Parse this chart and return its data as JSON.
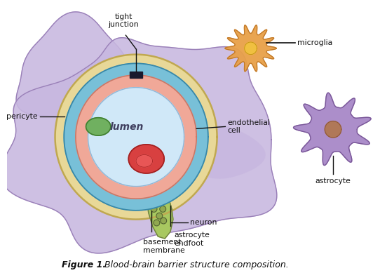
{
  "bg": "#ffffff",
  "title_bold": "Figure 1.",
  "title_italic": " Blood-brain barrier structure composition.",
  "labels": {
    "tight_junction": "tight\njunction",
    "pericyte": "pericyte",
    "lumen": "lumen",
    "endothelial_cell": "endothelial\ncell",
    "astrocyte_endfoot": "astrocyte\nendfoot",
    "basement_membrane": "basement\nmembrane",
    "neuron": "neuron",
    "microglia": "microglia",
    "astrocyte": "astrocyte"
  },
  "colors": {
    "astrocyte_wrap": "#c8b8e0",
    "astrocyte_wrap_edge": "#9a80b8",
    "astrocyte_cell": "#a888c8",
    "astrocyte_cell_edge": "#7a5898",
    "astrocyte_nucleus": "#b07858",
    "astrocyte_nucleus_edge": "#905838",
    "outer_tan": "#e8d898",
    "outer_tan_edge": "#c0a850",
    "blue_layer": "#78c0d8",
    "blue_layer_edge": "#3888a8",
    "pink_layer": "#f0a898",
    "pink_layer_edge": "#c87868",
    "lumen": "#d0e8f8",
    "lumen_edge": "#90b8d8",
    "green_nucleus": "#70b060",
    "green_nucleus_edge": "#408030",
    "red_nucleus": "#d84040",
    "red_nucleus_edge": "#a02020",
    "red_highlight": "#f06060",
    "tj_rect": "#1a1a2e",
    "neuron_stem": "#a8c860",
    "neuron_stem_edge": "#708040",
    "neuron_dot": "#90a850",
    "neuron_dot_edge": "#506030",
    "microglia_fill": "#e8a048",
    "microglia_edge": "#c07828",
    "microglia_nucleus": "#f0c040",
    "microglia_nucleus_edge": "#c09010",
    "ann_line": "#101010",
    "text": "#101010",
    "lumen_text": "#404060",
    "white_bg": "#ffffff"
  }
}
